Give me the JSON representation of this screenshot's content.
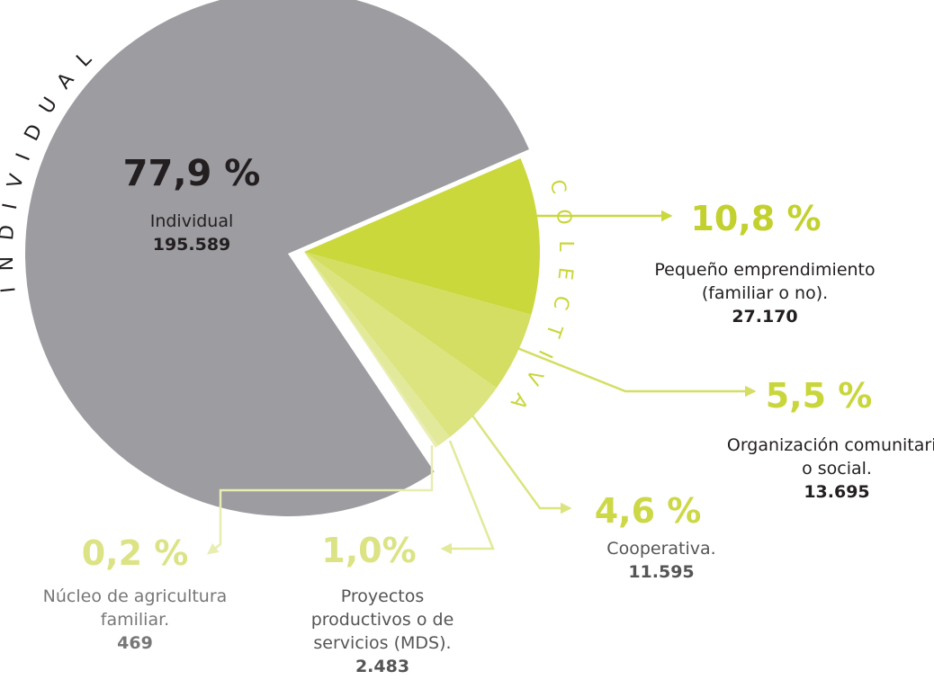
{
  "chart_data": {
    "type": "pie",
    "categories": [
      "Individual",
      "Pequeño emprendimiento (familiar o no).",
      "Organización comunitaria o social.",
      "Cooperativa.",
      "Proyectos productivos o de servicios (MDS).",
      "Núcleo de agricultura familiar."
    ],
    "values": [
      77.9,
      10.8,
      5.5,
      4.6,
      1.0,
      0.2
    ],
    "value_labels": [
      "77,9 %",
      "10,8 %",
      "5,5 %",
      "4,6 %",
      "1,0%",
      "0,2 %"
    ],
    "counts": [
      195589,
      27170,
      13695,
      11595,
      2483,
      469
    ],
    "count_labels": [
      "195.589",
      "27.170",
      "13.695",
      "11.595",
      "2.483",
      "469"
    ],
    "colors": [
      "#9d9ca1",
      "#cad83c",
      "#d4de62",
      "#dbe47e",
      "#e2e99a",
      "#e8edb2"
    ],
    "groups": [
      {
        "label": "INDIVIDUAL"
      },
      {
        "label": "COLECTIVA"
      }
    ]
  }
}
